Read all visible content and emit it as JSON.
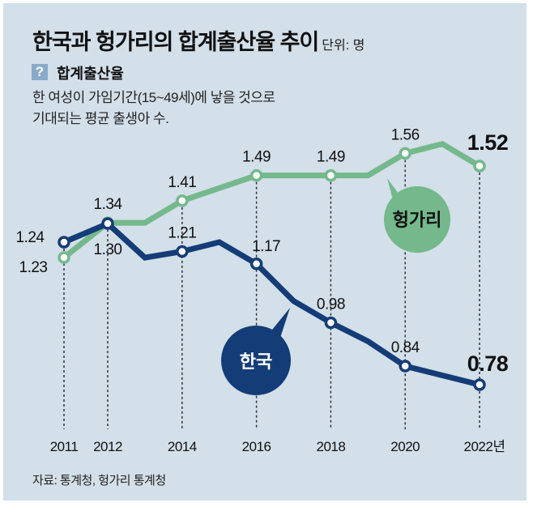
{
  "header": {
    "title": "한국과 헝가리의 합계출산율 추이",
    "unit": "단위: 명",
    "help_icon": "question-mark-icon",
    "definition_title": "합계출산율",
    "definition_lines": [
      "한 여성이 가임기간(15~49세)에 낳을 것으로",
      "기대되는 평균 출생아 수."
    ]
  },
  "footer": {
    "source": "자료: 통계청, 헝가리 통계청"
  },
  "colors": {
    "background": "#d3dfe9",
    "korea": "#143c77",
    "hungary": "#74b88c",
    "text": "#111111"
  },
  "chart_data": {
    "type": "line",
    "title": "한국과 헝가리의 합계출산율 추이",
    "ylabel": "단위: 명",
    "xlabel": "",
    "x": [
      2011,
      2012,
      2013,
      2014,
      2015,
      2016,
      2017,
      2018,
      2019,
      2020,
      2021,
      2022
    ],
    "x_tick_labels": [
      "2011",
      "2012",
      "2014",
      "2016",
      "2018",
      "2020",
      "2022년"
    ],
    "x_tick_years": [
      2011,
      2012,
      2014,
      2016,
      2018,
      2020,
      2022
    ],
    "grid": false,
    "series": [
      {
        "name": "헝가리",
        "values": [
          1.23,
          1.34,
          1.34,
          1.41,
          1.45,
          1.49,
          1.49,
          1.49,
          1.49,
          1.56,
          1.59,
          1.52
        ],
        "marked_years": [
          2011,
          2012,
          2014,
          2016,
          2018,
          2020,
          2022
        ],
        "labels": [
          "1.23",
          "1.34",
          "1.41",
          "1.49",
          "1.49",
          "1.56",
          "1.52"
        ]
      },
      {
        "name": "한국",
        "values": [
          1.24,
          1.3,
          1.19,
          1.21,
          1.24,
          1.17,
          1.05,
          0.98,
          0.92,
          0.84,
          0.81,
          0.78
        ],
        "marked_years": [
          2011,
          2012,
          2014,
          2016,
          2018,
          2020,
          2022
        ],
        "labels": [
          "1.24",
          "1.30",
          "1.21",
          "1.17",
          "0.98",
          "0.84",
          "0.78"
        ]
      }
    ],
    "legend": "callout bubbles near lines"
  }
}
